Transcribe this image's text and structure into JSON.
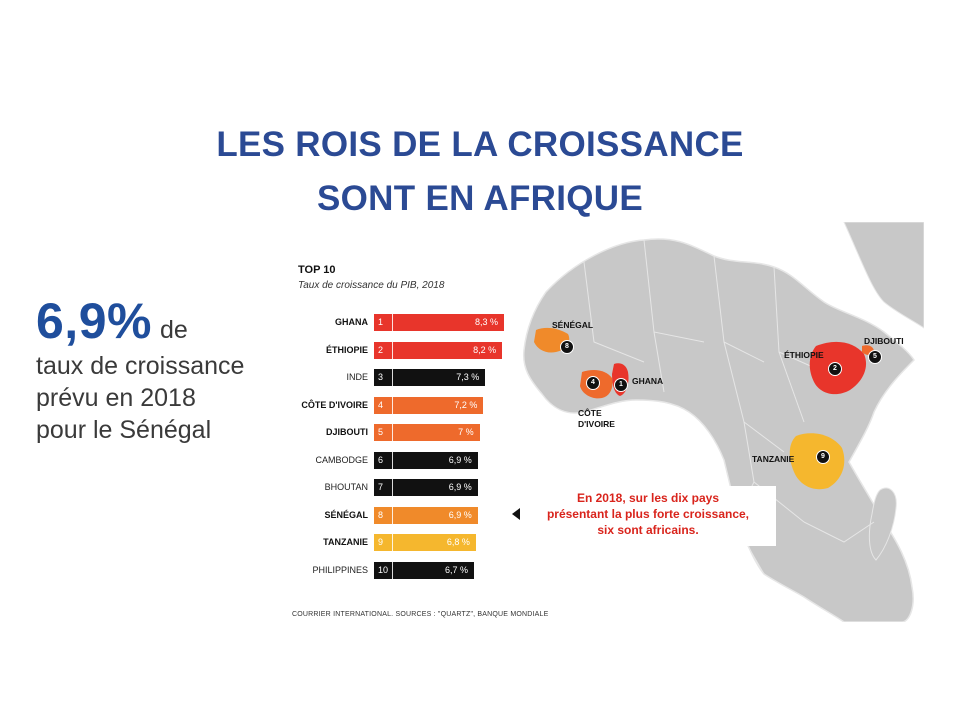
{
  "title_line1": "LES ROIS DE LA CROISSANCE",
  "title_line2": "SONT EN AFRIQUE",
  "stat": {
    "value": "6,9%",
    "suffix": "de",
    "line2": "taux de croissance",
    "line3": "prévu en 2018",
    "line4": "pour le Sénégal"
  },
  "chart_data": {
    "type": "bar",
    "title": "TOP 10",
    "subtitle": "Taux de croissance du PIB, 2018",
    "categories": [
      "GHANA",
      "ÉTHIOPIE",
      "INDE",
      "CÔTE D'IVOIRE",
      "DJIBOUTI",
      "CAMBODGE",
      "BHOUTAN",
      "SÉNÉGAL",
      "TANZANIE",
      "PHILIPPINES"
    ],
    "ranks": [
      "1",
      "2",
      "3",
      "4",
      "5",
      "6",
      "7",
      "8",
      "9",
      "10"
    ],
    "values": [
      8.3,
      8.2,
      7.3,
      7.2,
      7.0,
      6.9,
      6.9,
      6.9,
      6.8,
      6.7
    ],
    "value_labels": [
      "8,3 %",
      "8,2 %",
      "7,3 %",
      "7,2 %",
      "7 %",
      "6,9 %",
      "6,9 %",
      "6,9 %",
      "6,8 %",
      "6,7 %"
    ],
    "african": [
      true,
      true,
      false,
      true,
      true,
      false,
      false,
      true,
      true,
      false
    ],
    "bar_colors": [
      "#e8352b",
      "#e8352b",
      "#111111",
      "#ee6a2c",
      "#ee6a2c",
      "#111111",
      "#111111",
      "#f08a2a",
      "#f5b72e",
      "#111111"
    ],
    "source": "COURRIER INTERNATIONAL. SOURCES : \"QUARTZ\", BANQUE MONDIALE"
  },
  "map": {
    "labels": {
      "senegal": "SÉNÉGAL",
      "ghana": "GHANA",
      "cote_divoire": "CÔTE D'IVOIRE",
      "ethiopie": "ÉTHIOPIE",
      "djibouti": "DJIBOUTI",
      "tanzanie": "TANZANIE"
    },
    "markers": {
      "senegal": "8",
      "ghana": "1",
      "cote_divoire": "4",
      "ethiopie": "2",
      "djibouti": "5",
      "tanzanie": "9"
    }
  },
  "callout": {
    "line1": "En 2018, sur les dix pays",
    "line2": "présentant la plus forte croissance,",
    "line3": "six sont africains."
  }
}
